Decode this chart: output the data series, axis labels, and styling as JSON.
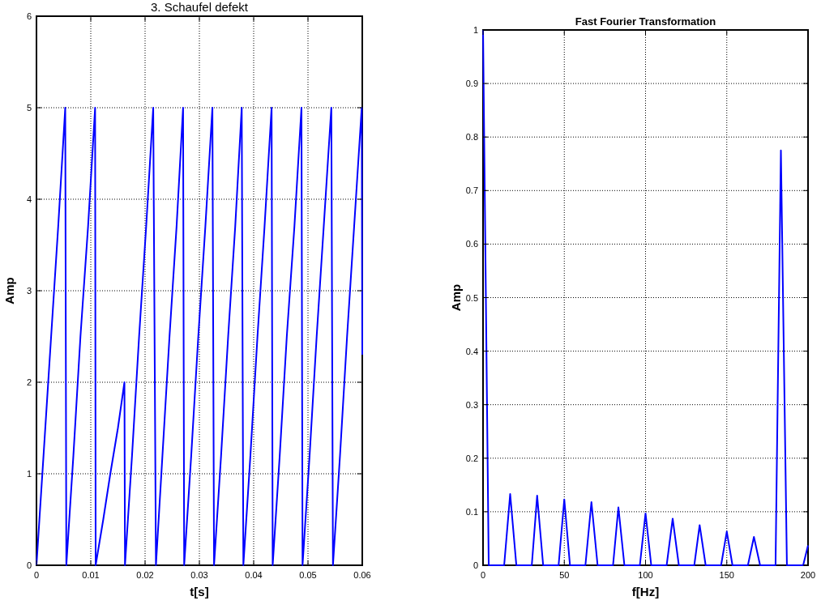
{
  "chart_data": [
    {
      "type": "line",
      "title": "3. Schaufel defekt",
      "xlabel": "t[s]",
      "ylabel": "Amp",
      "xlim": [
        0,
        0.06
      ],
      "xticks": [
        0,
        0.01,
        0.02,
        0.03,
        0.04,
        0.05,
        0.06
      ],
      "ylim": [
        0,
        6
      ],
      "yticks": [
        0,
        1,
        2,
        3,
        4,
        5,
        6
      ],
      "grid": true,
      "line_style": "solid",
      "marker": "none",
      "series": [
        {
          "color": "#0000ff",
          "x": [
            0,
            0.0013,
            0.0027,
            0.004,
            0.0053,
            0.0055,
            0.0068,
            0.0081,
            0.0095,
            0.0108,
            0.0109,
            0.0123,
            0.0136,
            0.015,
            0.0162,
            0.0163,
            0.0176,
            0.0189,
            0.0202,
            0.0215,
            0.022,
            0.0232,
            0.0245,
            0.0258,
            0.027,
            0.0272,
            0.0285,
            0.0298,
            0.0311,
            0.0324,
            0.0327,
            0.034,
            0.0353,
            0.0366,
            0.0378,
            0.0381,
            0.0394,
            0.0407,
            0.042,
            0.0433,
            0.0435,
            0.0448,
            0.0461,
            0.0475,
            0.0488,
            0.049,
            0.0503,
            0.0516,
            0.0529,
            0.0543,
            0.0546,
            0.0559,
            0.0572,
            0.0585,
            0.0599,
            0.06
          ],
          "values": [
            0,
            1.2,
            2.5,
            3.7,
            5,
            0,
            1.2,
            2.5,
            3.7,
            5,
            0,
            0.5,
            1,
            1.5,
            2,
            0,
            1.2,
            2.5,
            3.7,
            5,
            0,
            1.2,
            2.5,
            3.7,
            5,
            0,
            1.2,
            2.5,
            3.7,
            5,
            0,
            1.2,
            2.5,
            3.7,
            5,
            0,
            1.2,
            2.5,
            3.7,
            5,
            0,
            1.2,
            2.5,
            3.7,
            5,
            0,
            1.2,
            2.5,
            3.7,
            5,
            0,
            1.2,
            2.5,
            3.7,
            5,
            2.3
          ]
        }
      ]
    },
    {
      "type": "line",
      "title": "Fast Fourier Transformation",
      "xlabel": "f[Hz]",
      "ylabel": "Amp",
      "xlim": [
        0,
        200
      ],
      "xticks": [
        0,
        50,
        100,
        150,
        200
      ],
      "ylim": [
        0,
        1
      ],
      "yticks": [
        0,
        0.1,
        0.2,
        0.3,
        0.4,
        0.5,
        0.6,
        0.7,
        0.8,
        0.9,
        1
      ],
      "grid": true,
      "line_style": "solid",
      "marker": "none",
      "series": [
        {
          "color": "#0000ff",
          "x": [
            0,
            3.5,
            13,
            16.7,
            20.5,
            30,
            33.3,
            37,
            46.5,
            50,
            53.5,
            63,
            66.7,
            70.5,
            80,
            83.3,
            87,
            96.5,
            100,
            103.5,
            113,
            116.7,
            120.5,
            130,
            133.3,
            137,
            146.5,
            150,
            153.5,
            163,
            166.7,
            170.5,
            180,
            183.3,
            187,
            197,
            200
          ],
          "values": [
            1,
            0,
            0,
            0.133,
            0,
            0,
            0.13,
            0,
            0,
            0.123,
            0,
            0,
            0.118,
            0,
            0,
            0.108,
            0,
            0,
            0.097,
            0,
            0,
            0.087,
            0,
            0,
            0.075,
            0,
            0,
            0.063,
            0,
            0,
            0.053,
            0,
            0,
            0.775,
            0,
            0,
            0.037
          ]
        }
      ]
    }
  ]
}
